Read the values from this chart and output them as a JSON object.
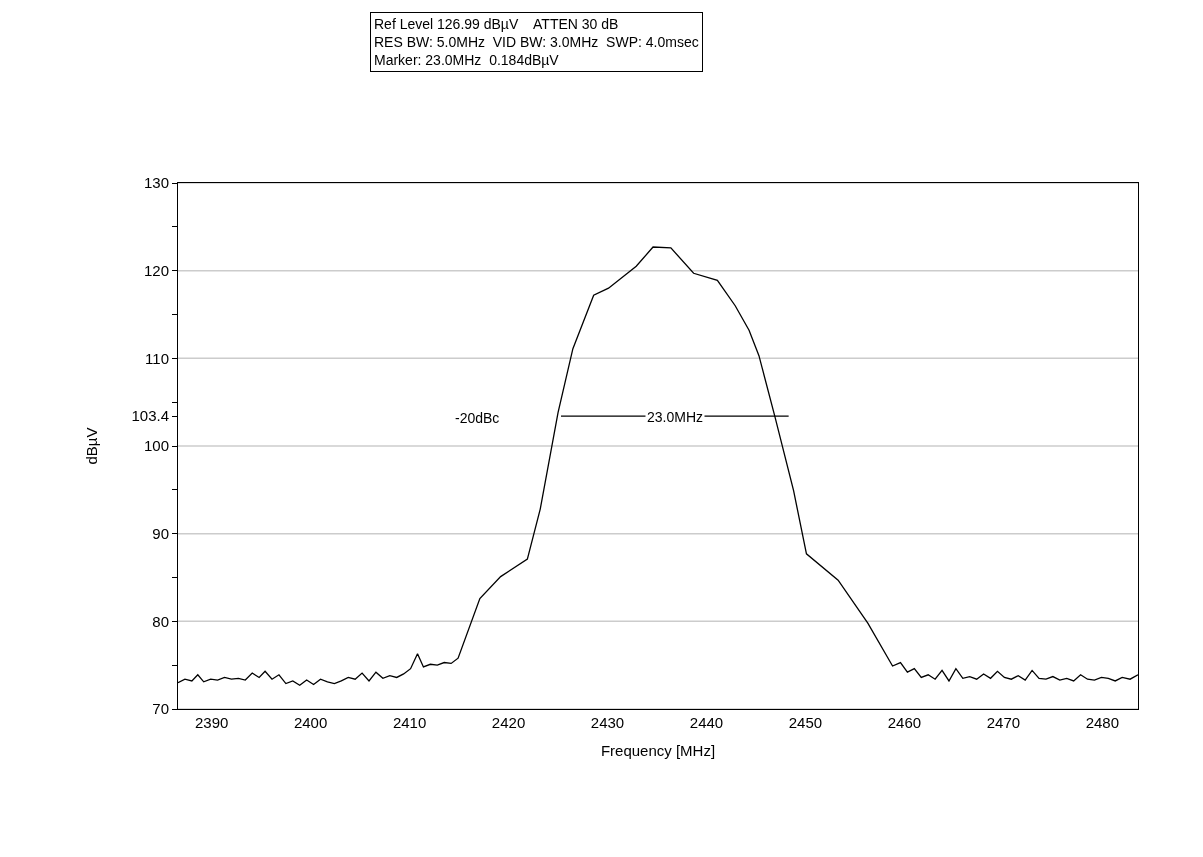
{
  "chart_data": {
    "type": "line",
    "xlabel": "Frequency [MHz]",
    "ylabel": "dBµV",
    "annotations": [
      "Ref Level 126.99 dBµV    ATTEN 30 dB\nRES BW: 5.0MHz  VID BW: 3.0MHz  SWP: 4.0msec\nMarker: 23.0MHz  0.184dBµV",
      "-20dBc",
      {
        "text": "23.0MHz",
        "x": 2436.8,
        "y": 103.4
      }
    ],
    "series": [
      {
        "color": "#000000",
        "x": [
          2386.6,
          2387.3,
          2388.0,
          2388.6,
          2389.2,
          2389.9,
          2390.6,
          2391.3,
          2392.0,
          2392.7,
          2393.4,
          2394.1,
          2394.8,
          2395.4,
          2396.1,
          2396.8,
          2397.5,
          2398.2,
          2398.9,
          2399.6,
          2400.3,
          2401.0,
          2401.7,
          2402.4,
          2403.1,
          2403.8,
          2404.5,
          2405.2,
          2405.9,
          2406.6,
          2407.3,
          2408.0,
          2408.7,
          2409.4,
          2410.1,
          2410.8,
          2411.4,
          2412.1,
          2412.8,
          2413.5,
          2414.2,
          2414.9,
          2417.1,
          2419.2,
          2421.9,
          2423.2,
          2425.0,
          2426.5,
          2428.6,
          2430.1,
          2432.9,
          2434.6,
          2436.4,
          2438.7,
          2441.1,
          2442.9,
          2444.3,
          2445.3,
          2446.9,
          2448.8,
          2450.1,
          2453.3,
          2456.3,
          2458.8,
          2459.6,
          2460.3,
          2461.0,
          2461.7,
          2462.4,
          2463.1,
          2463.8,
          2464.5,
          2465.2,
          2465.9,
          2466.6,
          2467.3,
          2468.0,
          2468.7,
          2469.4,
          2470.1,
          2470.8,
          2471.5,
          2472.2,
          2472.9,
          2473.6,
          2474.3,
          2475.0,
          2475.7,
          2476.4,
          2477.1,
          2477.8,
          2478.5,
          2479.2,
          2479.9,
          2480.6,
          2481.3,
          2482.0,
          2482.8,
          2483.6
        ],
        "values": [
          73.0,
          73.4,
          73.2,
          73.9,
          73.1,
          73.4,
          73.3,
          73.6,
          73.4,
          73.5,
          73.3,
          74.1,
          73.6,
          74.3,
          73.4,
          73.9,
          72.9,
          73.2,
          72.7,
          73.3,
          72.8,
          73.4,
          73.1,
          72.9,
          73.2,
          73.6,
          73.4,
          74.1,
          73.2,
          74.2,
          73.5,
          73.8,
          73.6,
          74.0,
          74.6,
          76.3,
          74.8,
          75.1,
          75.0,
          75.3,
          75.2,
          75.8,
          82.6,
          85.1,
          87.1,
          92.8,
          103.8,
          111.1,
          117.2,
          118.0,
          120.5,
          122.7,
          122.6,
          119.7,
          118.9,
          116.0,
          113.2,
          110.3,
          103.4,
          94.9,
          87.7,
          84.7,
          79.8,
          74.9,
          75.3,
          74.2,
          74.6,
          73.6,
          73.9,
          73.4,
          74.4,
          73.2,
          74.6,
          73.5,
          73.7,
          73.4,
          74.0,
          73.5,
          74.3,
          73.6,
          73.4,
          73.8,
          73.3,
          74.4,
          73.5,
          73.4,
          73.7,
          73.3,
          73.5,
          73.2,
          73.9,
          73.4,
          73.3,
          73.6,
          73.5,
          73.2,
          73.6,
          73.4,
          73.9
        ]
      },
      {
        "type": "line",
        "color": "#000000",
        "x": [
          2425.3,
          2448.3
        ],
        "values": [
          103.4,
          103.4
        ]
      }
    ],
    "xlim": [
      2386.6,
      2483.6
    ],
    "xticks": [
      2390,
      2400,
      2410,
      2420,
      2430,
      2440,
      2450,
      2460,
      2470,
      2480
    ],
    "ylim": [
      70,
      130
    ],
    "yticks": [
      70,
      {
        "value": 75,
        "label": null
      },
      80,
      {
        "value": 85,
        "label": null
      },
      90,
      {
        "value": 95,
        "label": null
      },
      100,
      103.4,
      {
        "value": 105,
        "label": null
      },
      110,
      {
        "value": 115,
        "label": null
      },
      120,
      {
        "value": 125,
        "label": null
      },
      130
    ],
    "grid": "y",
    "marker": "none",
    "line_style": "solid"
  }
}
